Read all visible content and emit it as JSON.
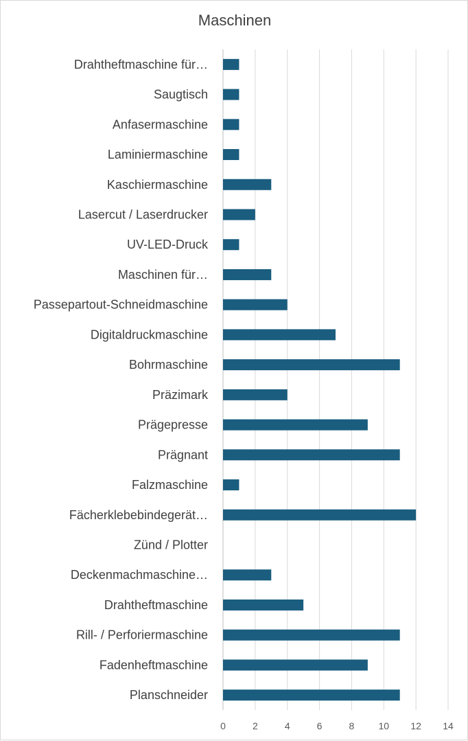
{
  "chart_data": {
    "type": "bar",
    "orientation": "horizontal",
    "title": "Maschinen",
    "xlabel": "",
    "ylabel": "",
    "xlim": [
      0,
      14
    ],
    "xticks": [
      0,
      2,
      4,
      6,
      8,
      10,
      12,
      14
    ],
    "grid": true,
    "legend": "none",
    "bar_color": "#1a5d7e",
    "categories": [
      "Drahtheftmaschine für…",
      "Saugtisch",
      "Anfasermaschine",
      "Laminiermaschine",
      "Kaschiermaschine",
      "Lasercut / Laserdrucker",
      "UV-LED-Druck",
      "Maschinen für…",
      "Passepartout-Schneidmaschine",
      "Digitaldruckmaschine",
      "Bohrmaschine",
      "Präzimark",
      "Prägepresse",
      "Prägnant",
      "Falzmaschine",
      "Fächerklebebindegerät…",
      "Zünd / Plotter",
      "Deckenmachmaschine…",
      "Drahtheftmaschine",
      "Rill- / Perforiermaschine",
      "Fadenheftmaschine",
      "Planschneider"
    ],
    "values": [
      1,
      1,
      1,
      1,
      3,
      2,
      1,
      3,
      4,
      7,
      11,
      4,
      9,
      11,
      1,
      12,
      0,
      3,
      5,
      11,
      9,
      11
    ]
  }
}
